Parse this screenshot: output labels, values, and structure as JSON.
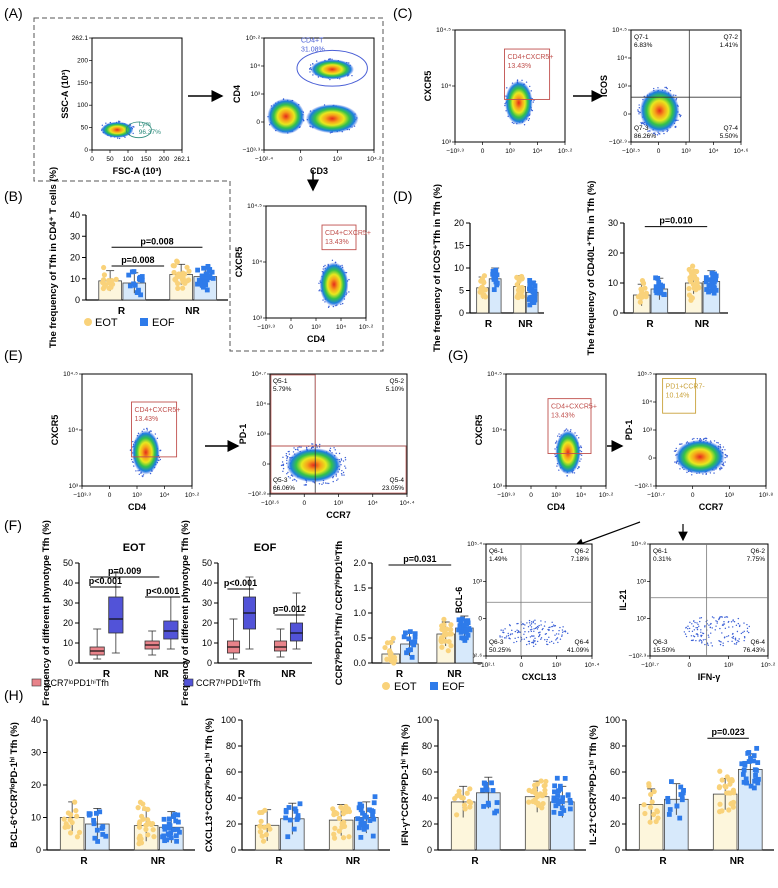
{
  "colors": {
    "eot": "#f9d27a",
    "eof": "#2e7bea",
    "eot_bar": "#fdf6dc",
    "eof_bar": "#d7e9fb",
    "box_red": "#e8838a",
    "box_blue": "#5253d8",
    "gate_red": "#c0504d",
    "gate_gold": "#c9a23b",
    "gate_blue": "#4a5fd6"
  },
  "panels": {
    "A": "(A)",
    "B": "(B)",
    "C": "(C)",
    "D": "(D)",
    "E": "(E)",
    "F": "(F)",
    "G": "(G)",
    "H": "(H)"
  },
  "flow": {
    "a1": {
      "ylabel": "SSC-A (10³)",
      "xlabel": "FSC-A (10³)",
      "gate": "Lym",
      "gate_pct": "96.37%",
      "xticks": [
        "0",
        "50",
        "100",
        "150",
        "200",
        "262.1"
      ],
      "yticks": [
        "0",
        "50",
        "100",
        "150",
        "200",
        "262.1"
      ]
    },
    "a2": {
      "ylabel": "CD4",
      "xlabel": "CD3",
      "gate": "CD4+T",
      "gate_pct": "31.08%",
      "xticks": [
        "−10²·⁴",
        "0",
        "10³",
        "10⁴·²"
      ],
      "yticks": [
        "−10³·³",
        "0",
        "10³",
        "10⁴",
        "10⁵·²"
      ]
    },
    "a3": {
      "ylabel": "CXCR5",
      "xlabel": "CD4",
      "gate": "CD4+CXCR5+",
      "gate_pct": "13.43%",
      "xticks": [
        "−10³·³",
        "0",
        "10³",
        "10⁴",
        "10⁵·²"
      ],
      "yticks": [
        "10³",
        "10⁴",
        "10⁴·⁵"
      ]
    },
    "c1": {
      "ylabel": "CXCR5",
      "xlabel": "",
      "gate": "CD4+CXCR5+",
      "gate_pct": "13.43%",
      "xticks": [
        "−10³·³",
        "0",
        "10³",
        "10⁴",
        "10⁵·²"
      ],
      "yticks": [
        "10³",
        "10⁴",
        "10⁴·⁵"
      ]
    },
    "c2": {
      "ylabel": "ICOS",
      "xlabel": "",
      "xticks": [
        "−10²·⁵",
        "0",
        "10³",
        "10⁴",
        "10⁴·⁶"
      ],
      "yticks": [
        "−10²·⁹",
        "0",
        "10³",
        "10⁴",
        "10⁴·⁵"
      ],
      "quadrants": [
        {
          "name": "Q7-1",
          "pct": "6.83%"
        },
        {
          "name": "Q7-2",
          "pct": "1.41%"
        },
        {
          "name": "Q7-3",
          "pct": "86.26%"
        },
        {
          "name": "Q7-4",
          "pct": "5.50%"
        }
      ]
    },
    "e1": {
      "ylabel": "CXCR5",
      "xlabel": "CD4",
      "gate": "CD4+CXCR5+",
      "gate_pct": "13.43%",
      "xticks": [
        "−10³·³",
        "0",
        "10³",
        "10⁴",
        "10⁵·²"
      ],
      "yticks": [
        "10³",
        "10⁴",
        "10⁴·⁵"
      ]
    },
    "e2": {
      "ylabel": "PD-1",
      "xlabel": "CCR7",
      "xticks": [
        "−10²·⁶",
        "0",
        "10³",
        "10⁴",
        "10⁴·⁴"
      ],
      "yticks": [
        "−10²·⁸",
        "0",
        "10³",
        "10⁴",
        "10⁴·⁷"
      ],
      "quadrants": [
        {
          "name": "Q5-1",
          "pct": "5.79%"
        },
        {
          "name": "Q5-2",
          "pct": "5.10%"
        },
        {
          "name": "Q5-3",
          "pct": "66.06%"
        },
        {
          "name": "Q5-4",
          "pct": "23.05%"
        }
      ]
    },
    "g1": {
      "ylabel": "CXCR5",
      "xlabel": "CD4",
      "gate": "CD4+CXCR5+",
      "gate_pct": "13.43%",
      "xticks": [
        "−10³·³",
        "0",
        "10³",
        "10⁴",
        "10⁵·²"
      ],
      "yticks": [
        "10³",
        "10⁴",
        "10⁴·⁵"
      ]
    },
    "g2": {
      "ylabel": "PD-1",
      "xlabel": "CCR7",
      "gate": "PD1+CCR7-",
      "gate_pct": "10.14%",
      "xticks": [
        "−10¹·⁷",
        "0",
        "10³",
        "10³·⁸"
      ],
      "yticks": [
        "−10²·¹",
        "0",
        "10³",
        "10⁴",
        "10⁵·⁵"
      ]
    },
    "g3": {
      "ylabel": "BCL-6",
      "xlabel": "CXCL13",
      "xticks": [
        "−10²·¹",
        "0",
        "10³",
        "10⁵·⁴"
      ],
      "yticks": [
        "−10²·⁶",
        "0",
        "10³",
        "10⁵·⁴"
      ],
      "quadrants": [
        {
          "name": "Q6-1",
          "pct": "1.49%"
        },
        {
          "name": "Q6-2",
          "pct": "7.18%"
        },
        {
          "name": "Q6-3",
          "pct": "50.25%"
        },
        {
          "name": "Q6-4",
          "pct": "41.09%"
        }
      ]
    },
    "g4": {
      "ylabel": "IL-21",
      "xlabel": "IFN-γ",
      "xticks": [
        "−10²·⁷",
        "0",
        "10³",
        "10⁵·²"
      ],
      "yticks": [
        "−10²·³",
        "10²",
        "10³",
        "10⁴·⁸"
      ],
      "quadrants": [
        {
          "name": "Q6-1",
          "pct": "0.31%"
        },
        {
          "name": "Q6-2",
          "pct": "7.75%"
        },
        {
          "name": "Q6-3",
          "pct": "15.50%"
        },
        {
          "name": "Q6-4",
          "pct": "76.43%"
        }
      ]
    }
  },
  "legend_eot_eof": {
    "eot": "EOT",
    "eof": "EOF"
  },
  "legend_box": {
    "lo": "CCR7ˡᵒPD1ʰⁱTfh",
    "hi": "CCR7ʰⁱPD1ˡᵒTfh"
  },
  "chart_data": [
    {
      "id": "B",
      "type": "bar",
      "ylabel": "The frequency of Tfh in CD4⁺ T cells (%)",
      "ylim": [
        0,
        40
      ],
      "yticks": [
        "0",
        "10",
        "20",
        "30",
        "40"
      ],
      "categories": [
        "R",
        "NR"
      ],
      "series": [
        {
          "name": "EOT",
          "values": [
            9,
            12
          ]
        },
        {
          "name": "EOF",
          "values": [
            8,
            11
          ]
        }
      ],
      "annotations": [
        {
          "text": "p=0.008"
        },
        {
          "text": "p=0.008"
        }
      ]
    },
    {
      "id": "D1",
      "type": "bar",
      "ylabel": "The frequency of ICOS⁺Tfh in Tfh (%)",
      "ylim": [
        0,
        20
      ],
      "yticks": [
        "0",
        "5",
        "10",
        "15",
        "20"
      ],
      "categories": [
        "R",
        "NR"
      ],
      "series": [
        {
          "name": "EOT",
          "values": [
            5.6,
            5.9
          ]
        },
        {
          "name": "EOF",
          "values": [
            7.6,
            4.6
          ]
        }
      ],
      "annotations": []
    },
    {
      "id": "D2",
      "type": "bar",
      "ylabel": "The frequency of CD40L⁺Tfh in Tfh (%)",
      "ylim": [
        0,
        30
      ],
      "yticks": [
        "0",
        "10",
        "20",
        "30"
      ],
      "categories": [
        "R",
        "NR"
      ],
      "series": [
        {
          "name": "EOT",
          "values": [
            6,
            10
          ]
        },
        {
          "name": "EOF",
          "values": [
            8,
            10.5
          ]
        }
      ],
      "annotations": [
        {
          "text": "p=0.010"
        }
      ]
    },
    {
      "id": "F1",
      "type": "box",
      "title": "EOT",
      "ylabel": "Frequency of different phynotype Tfh (%)",
      "ylim": [
        0,
        50
      ],
      "yticks": [
        "0",
        "10",
        "20",
        "30",
        "40",
        "50"
      ],
      "categories": [
        "R",
        "NR"
      ],
      "series": [
        {
          "name": "CCR7loPD1hiTfh",
          "boxes": [
            [
              2,
              4,
              6,
              8,
              17
            ],
            [
              4,
              7,
              9,
              11,
              16
            ]
          ]
        },
        {
          "name": "CCR7hiPD1loTfh",
          "boxes": [
            [
              5,
              15,
              22,
              33,
              45
            ],
            [
              7,
              12,
              16,
              21,
              33
            ]
          ]
        }
      ],
      "annotations": [
        {
          "text": "p=0.009"
        },
        {
          "text": "p<0.001"
        },
        {
          "text": "p<0.001"
        }
      ]
    },
    {
      "id": "F2",
      "type": "box",
      "title": "EOF",
      "ylabel": "Frequency of different phynotype Tfh (%)",
      "ylim": [
        0,
        50
      ],
      "yticks": [
        "0",
        "10",
        "20",
        "30",
        "40",
        "50"
      ],
      "categories": [
        "R",
        "NR"
      ],
      "series": [
        {
          "name": "CCR7loPD1hiTfh",
          "boxes": [
            [
              2,
              5,
              8,
              11,
              22
            ],
            [
              3,
              6,
              8,
              11,
              17
            ]
          ]
        },
        {
          "name": "CCR7hiPD1loTfh",
          "boxes": [
            [
              7,
              17,
              25,
              33,
              43
            ],
            [
              7,
              11,
              15,
              20,
              35
            ]
          ]
        }
      ],
      "annotations": [
        {
          "text": "p<0.001"
        },
        {
          "text": "p=0.012"
        }
      ]
    },
    {
      "id": "F3",
      "type": "bar",
      "ylabel": "CCR7ˡᵒPD1ʰⁱTfh/ CCR7ʰⁱPD1ˡᵒTfh",
      "ylim": [
        0,
        2.0
      ],
      "yticks": [
        "0.0",
        "0.5",
        "1.0",
        "1.5",
        "2.0"
      ],
      "categories": [
        "R",
        "NR"
      ],
      "series": [
        {
          "name": "EOT",
          "values": [
            0.18,
            0.58
          ]
        },
        {
          "name": "EOF",
          "values": [
            0.38,
            0.7
          ]
        }
      ],
      "annotations": [
        {
          "text": "p=0.031"
        }
      ]
    },
    {
      "id": "H1",
      "type": "bar",
      "ylabel": "BCL-6⁺CCR7ˡᵒPD-1ʰⁱ Tfh (%)",
      "ylim": [
        0,
        40
      ],
      "yticks": [
        "0",
        "10",
        "20",
        "30",
        "40"
      ],
      "categories": [
        "R",
        "NR"
      ],
      "series": [
        {
          "name": "EOT",
          "values": [
            10,
            7.5
          ]
        },
        {
          "name": "EOF",
          "values": [
            8,
            7
          ]
        }
      ],
      "annotations": []
    },
    {
      "id": "H2",
      "type": "bar",
      "ylabel": "CXCL13⁺CCR7ˡᵒPD-1ʰⁱ Tfh (%)",
      "ylim": [
        0,
        100
      ],
      "yticks": [
        "0",
        "20",
        "40",
        "60",
        "80",
        "100"
      ],
      "categories": [
        "R",
        "NR"
      ],
      "series": [
        {
          "name": "EOT",
          "values": [
            19,
            23
          ]
        },
        {
          "name": "EOF",
          "values": [
            24,
            25
          ]
        }
      ],
      "annotations": []
    },
    {
      "id": "H3",
      "type": "bar",
      "ylabel": "IFN-γ⁺CCR7ˡᵒPD-1ʰⁱ Tfh (%)",
      "ylim": [
        0,
        100
      ],
      "yticks": [
        "0",
        "20",
        "40",
        "60",
        "80",
        "100"
      ],
      "categories": [
        "R",
        "NR"
      ],
      "series": [
        {
          "name": "EOT",
          "values": [
            37,
            41
          ]
        },
        {
          "name": "EOF",
          "values": [
            44,
            37
          ]
        }
      ],
      "annotations": []
    },
    {
      "id": "H4",
      "type": "bar",
      "ylabel": "IL-21⁺CCR7ˡᵒPD-1ʰⁱ Tfh (%)",
      "ylim": [
        0,
        100
      ],
      "yticks": [
        "0",
        "20",
        "40",
        "60",
        "80",
        "100"
      ],
      "categories": [
        "R",
        "NR"
      ],
      "series": [
        {
          "name": "EOT",
          "values": [
            35,
            43
          ]
        },
        {
          "name": "EOF",
          "values": [
            39,
            62
          ]
        }
      ],
      "annotations": [
        {
          "text": "p=0.023"
        }
      ]
    }
  ]
}
